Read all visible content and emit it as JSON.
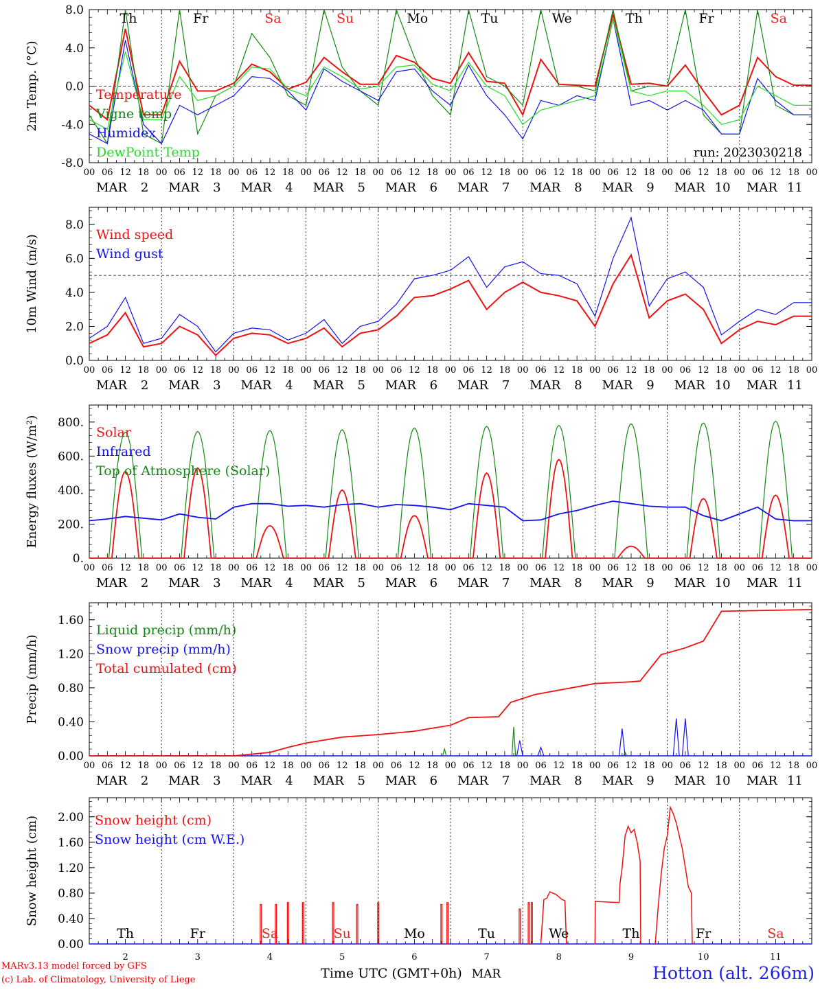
{
  "credits": {
    "line1": "MARv3.13 model forced by GFS",
    "line2": "(c) Lab. of Climatology, University of Liege"
  },
  "station": "Hotton (alt. 266m)",
  "run_label": "run: 2023030218",
  "x_axis": {
    "hour_ticks": [
      "00",
      "06",
      "12",
      "18"
    ],
    "month": "MAR",
    "days": [
      "2",
      "3",
      "4",
      "5",
      "6",
      "7",
      "8",
      "9",
      "10",
      "11"
    ],
    "weekdays": [
      "Th",
      "Fr",
      "Sa",
      "Su",
      "Mo",
      "Tu",
      "We",
      "Th",
      "Fr",
      "Sa"
    ],
    "weekend_flags": [
      false,
      false,
      true,
      true,
      false,
      false,
      false,
      false,
      false,
      true
    ],
    "bottom_title": "Time UTC (GMT+0h)",
    "bottom_month": "MAR"
  },
  "colors": {
    "red": "#ee1111",
    "green": "#118811",
    "blue": "#1111ee",
    "lightgreen": "#22dd22",
    "weekend": "#ee2222"
  },
  "chart_data": [
    {
      "type": "line",
      "ylabel": "2m Temp. (°C)",
      "ylim": [
        -8,
        8
      ],
      "y_ticks": [
        "-8.0",
        "-4.0",
        "0.0",
        "4.0",
        "8.0"
      ],
      "reference_line": 0,
      "x_unit": "hours since MAR 2 00 UTC",
      "series": [
        {
          "name": "Temperature",
          "color": "red",
          "x": [
            0,
            6,
            12,
            18,
            24,
            30,
            36,
            42,
            48,
            54,
            60,
            66,
            72,
            78,
            84,
            90,
            96,
            102,
            108,
            114,
            120,
            126,
            132,
            138,
            144,
            150,
            156,
            162,
            168,
            174,
            180,
            186,
            192,
            198,
            204,
            210,
            216,
            222,
            228,
            234
          ],
          "values": [
            -2,
            -3.5,
            6,
            -3,
            -3,
            2.6,
            -0.5,
            -0.5,
            0.3,
            2.3,
            1.5,
            -0.3,
            0.4,
            3,
            1.5,
            0.2,
            0.2,
            3.2,
            2.5,
            0.8,
            0.3,
            3.5,
            0.5,
            0.3,
            -3,
            2.8,
            0.2,
            0.1,
            0,
            7.5,
            0.2,
            0.3,
            0,
            2.2,
            -0.5,
            -3,
            -2,
            3,
            1,
            0.1
          ]
        },
        {
          "name": "Vigne temp",
          "color": "green",
          "x": [
            0,
            6,
            12,
            18,
            24,
            30,
            36,
            42,
            48,
            54,
            60,
            66,
            72,
            78,
            84,
            90,
            96,
            102,
            108,
            114,
            120,
            126,
            132,
            138,
            144,
            150,
            156,
            162,
            168,
            174,
            180,
            186,
            192,
            198,
            204,
            210,
            216,
            222,
            228,
            234
          ],
          "values": [
            -3,
            -6,
            8,
            -5,
            -6,
            8,
            -5,
            -1,
            0,
            5.5,
            3,
            -1,
            -2,
            8,
            2,
            -0.5,
            -2,
            8,
            3,
            -1,
            -3,
            8,
            1,
            0,
            -2,
            8,
            0,
            0,
            -0.5,
            8,
            -0.5,
            0,
            0,
            8,
            -3,
            -5,
            -5,
            8,
            -2,
            -3
          ]
        },
        {
          "name": "Humidex",
          "color": "blue",
          "x": [
            0,
            6,
            12,
            18,
            24,
            30,
            36,
            42,
            48,
            54,
            60,
            66,
            72,
            78,
            84,
            90,
            96,
            102,
            108,
            114,
            120,
            126,
            132,
            138,
            144,
            150,
            156,
            162,
            168,
            174,
            180,
            186,
            192,
            198,
            204,
            210,
            216,
            222,
            228,
            234
          ],
          "values": [
            -5,
            -6,
            4.8,
            -4,
            -6,
            -2,
            -3,
            -2,
            -1,
            1,
            0.8,
            -0.5,
            -2.5,
            1.8,
            0.5,
            -0.5,
            -1.5,
            1.5,
            1.8,
            -0.5,
            -2,
            2.2,
            -1,
            -3,
            -5.5,
            -1.5,
            -2,
            -1,
            -1.5,
            7,
            -2,
            -1.5,
            -2.5,
            -1.5,
            -2.5,
            -5,
            -5,
            0.8,
            -1.5,
            -3
          ]
        },
        {
          "name": "DewPoint Temp",
          "color": "lightgreen",
          "x": [
            0,
            6,
            12,
            18,
            24,
            30,
            36,
            42,
            48,
            54,
            60,
            66,
            72,
            78,
            84,
            90,
            96,
            102,
            108,
            114,
            120,
            126,
            132,
            138,
            144,
            150,
            156,
            162,
            168,
            174,
            180,
            186,
            192,
            198,
            204,
            210,
            216,
            222,
            228,
            234
          ],
          "values": [
            -3.5,
            -4.5,
            3.6,
            -3.5,
            -3.5,
            1,
            -1.5,
            -1,
            0,
            2,
            1.8,
            -0.3,
            -1,
            2,
            1,
            -0.3,
            0,
            2,
            2.2,
            0.2,
            -0.5,
            2.5,
            0,
            -1,
            -4,
            -2.5,
            -2,
            -1.5,
            -1,
            7,
            -0.5,
            -1,
            -0.5,
            -0.5,
            -2,
            -4,
            -3.5,
            0,
            -1,
            -2
          ]
        }
      ],
      "legend": [
        "Temperature",
        "Vigne temp",
        "Humidex",
        "DewPoint Temp"
      ]
    },
    {
      "type": "line",
      "ylabel": "10m Wind (m/s)",
      "ylim": [
        0,
        9
      ],
      "y_ticks": [
        "0.0",
        "2.0",
        "4.0",
        "6.0",
        "8.0"
      ],
      "reference_line": 5,
      "x_unit": "hours since MAR 2 00 UTC",
      "series": [
        {
          "name": "Wind speed",
          "color": "red",
          "x": [
            0,
            6,
            12,
            18,
            24,
            30,
            36,
            42,
            48,
            54,
            60,
            66,
            72,
            78,
            84,
            90,
            96,
            102,
            108,
            114,
            120,
            126,
            132,
            138,
            144,
            150,
            156,
            162,
            168,
            174,
            180,
            186,
            192,
            198,
            204,
            210,
            216,
            222,
            228,
            234
          ],
          "values": [
            1,
            1.5,
            2.8,
            0.8,
            1,
            2,
            1.5,
            0.3,
            1.3,
            1.6,
            1.5,
            1,
            1.3,
            1.9,
            0.8,
            1.6,
            1.8,
            2.6,
            3.7,
            3.8,
            4.2,
            4.7,
            3,
            4,
            4.6,
            4,
            3.8,
            3.5,
            2,
            4.5,
            6.2,
            2.5,
            3.5,
            3.9,
            3,
            1,
            1.8,
            2.3,
            2.1,
            2.6
          ]
        },
        {
          "name": "Wind gust",
          "color": "blue",
          "x": [
            0,
            6,
            12,
            18,
            24,
            30,
            36,
            42,
            48,
            54,
            60,
            66,
            72,
            78,
            84,
            90,
            96,
            102,
            108,
            114,
            120,
            126,
            132,
            138,
            144,
            150,
            156,
            162,
            168,
            174,
            180,
            186,
            192,
            198,
            204,
            210,
            216,
            222,
            228,
            234
          ],
          "values": [
            1.3,
            2,
            3.7,
            1,
            1.3,
            2.7,
            2,
            0.5,
            1.6,
            1.9,
            1.8,
            1.2,
            1.6,
            2.4,
            1,
            2,
            2.3,
            3.3,
            4.8,
            5,
            5.3,
            6.1,
            4.3,
            5.5,
            5.8,
            5.1,
            5,
            4.5,
            2.6,
            6,
            8.4,
            3.2,
            4.8,
            5.2,
            4.3,
            1.5,
            2.3,
            3,
            2.7,
            3.4
          ]
        }
      ],
      "legend": [
        "Wind speed",
        "Wind gust"
      ]
    },
    {
      "type": "line",
      "ylabel": "Energy fluxes (W/m²)",
      "ylim": [
        0,
        900
      ],
      "y_ticks": [
        "0.",
        "200.",
        "400.",
        "600.",
        "800."
      ],
      "x_unit": "hours since MAR 2 00 UTC",
      "solar_peaks": [
        510,
        530,
        190,
        400,
        250,
        500,
        580,
        70,
        350,
        370
      ],
      "toa_peaks": [
        740,
        745,
        750,
        755,
        765,
        775,
        780,
        790,
        795,
        805
      ],
      "infrared": {
        "x": [
          0,
          6,
          12,
          18,
          24,
          30,
          36,
          42,
          48,
          54,
          60,
          66,
          72,
          78,
          84,
          90,
          96,
          102,
          108,
          114,
          120,
          126,
          132,
          138,
          144,
          150,
          156,
          162,
          168,
          174,
          180,
          186,
          192,
          198,
          204,
          210,
          216,
          222,
          228,
          234
        ],
        "values": [
          220,
          230,
          245,
          235,
          225,
          260,
          240,
          230,
          300,
          320,
          320,
          305,
          310,
          300,
          315,
          320,
          300,
          315,
          310,
          300,
          285,
          320,
          310,
          300,
          220,
          225,
          260,
          280,
          310,
          335,
          320,
          305,
          300,
          300,
          250,
          220,
          260,
          300,
          230,
          220
        ]
      },
      "legend": [
        "Solar",
        "Infrared",
        "Top of Atmosphere (Solar)"
      ]
    },
    {
      "type": "line",
      "ylabel": "Precip (mm/h)",
      "ylim": [
        0,
        1.8
      ],
      "y_ticks": [
        "0.00",
        "0.40",
        "0.80",
        "1.20",
        "1.60"
      ],
      "x_unit": "hours since MAR 2 00 UTC",
      "total_cumulated": {
        "name": "Total cumulated (cm)",
        "x": [
          0,
          48,
          60,
          66,
          72,
          84,
          96,
          108,
          120,
          126,
          136,
          140,
          148,
          168,
          174,
          180,
          183,
          190,
          198,
          204,
          210,
          240
        ],
        "values": [
          0,
          0,
          0.04,
          0.1,
          0.15,
          0.22,
          0.25,
          0.29,
          0.36,
          0.45,
          0.46,
          0.63,
          0.72,
          0.85,
          0.86,
          0.87,
          0.88,
          1.19,
          1.27,
          1.35,
          1.7,
          1.72
        ]
      },
      "liquid_spikes": [
        {
          "x": 141,
          "v": 0.34
        },
        {
          "x": 118,
          "v": 0.08
        },
        {
          "x": 178,
          "v": 0.04
        }
      ],
      "snow_spikes": [
        {
          "x": 177,
          "v": 0.32
        },
        {
          "x": 195,
          "v": 0.44
        },
        {
          "x": 198,
          "v": 0.44
        },
        {
          "x": 143,
          "v": 0.18
        },
        {
          "x": 150,
          "v": 0.1
        }
      ],
      "legend": [
        "Liquid precip (mm/h)",
        "Snow precip (mm/h)",
        "Total cumulated (cm)"
      ]
    },
    {
      "type": "line",
      "ylabel": "Snow height (cm)",
      "ylim": [
        0,
        2.3
      ],
      "y_ticks": [
        "0.00",
        "0.40",
        "0.80",
        "1.20",
        "1.60",
        "2.00"
      ],
      "x_unit": "hours since MAR 2 00 UTC",
      "snow_spikes": [
        {
          "x": 57,
          "v": 0.62
        },
        {
          "x": 62,
          "v": 0.62
        },
        {
          "x": 66,
          "v": 0.65
        },
        {
          "x": 71,
          "v": 0.65
        },
        {
          "x": 81,
          "v": 0.65
        },
        {
          "x": 89,
          "v": 0.62
        },
        {
          "x": 96,
          "v": 0.65
        },
        {
          "x": 117,
          "v": 0.62
        },
        {
          "x": 119,
          "v": 0.65
        },
        {
          "x": 143,
          "v": 0.55
        },
        {
          "x": 146,
          "v": 0.65
        },
        {
          "x": 147,
          "v": 0.65
        }
      ],
      "snow_blocks": [
        {
          "x": [
            150,
            151,
            152,
            153,
            155,
            157,
            158,
            158.5
          ],
          "values": [
            0,
            0.7,
            0.72,
            0.82,
            0.78,
            0.7,
            0.68,
            0
          ]
        },
        {
          "x": [
            168,
            168.1,
            176,
            176.3,
            177,
            178,
            179,
            180,
            181,
            182,
            183,
            183.2
          ],
          "values": [
            0,
            0.67,
            0.65,
            0.95,
            1.2,
            1.7,
            1.85,
            1.75,
            1.8,
            1.6,
            1.3,
            0
          ]
        },
        {
          "x": [
            188,
            189,
            190,
            191,
            192,
            193,
            194,
            195,
            196,
            197,
            198,
            199,
            200,
            200.3
          ],
          "values": [
            0,
            0.6,
            1.1,
            1.5,
            1.7,
            2.15,
            2.05,
            1.9,
            1.7,
            1.5,
            1.2,
            0.9,
            0.8,
            0
          ]
        }
      ],
      "legend": [
        "Snow height (cm)",
        "Snow height (cm W.E.)"
      ]
    }
  ]
}
